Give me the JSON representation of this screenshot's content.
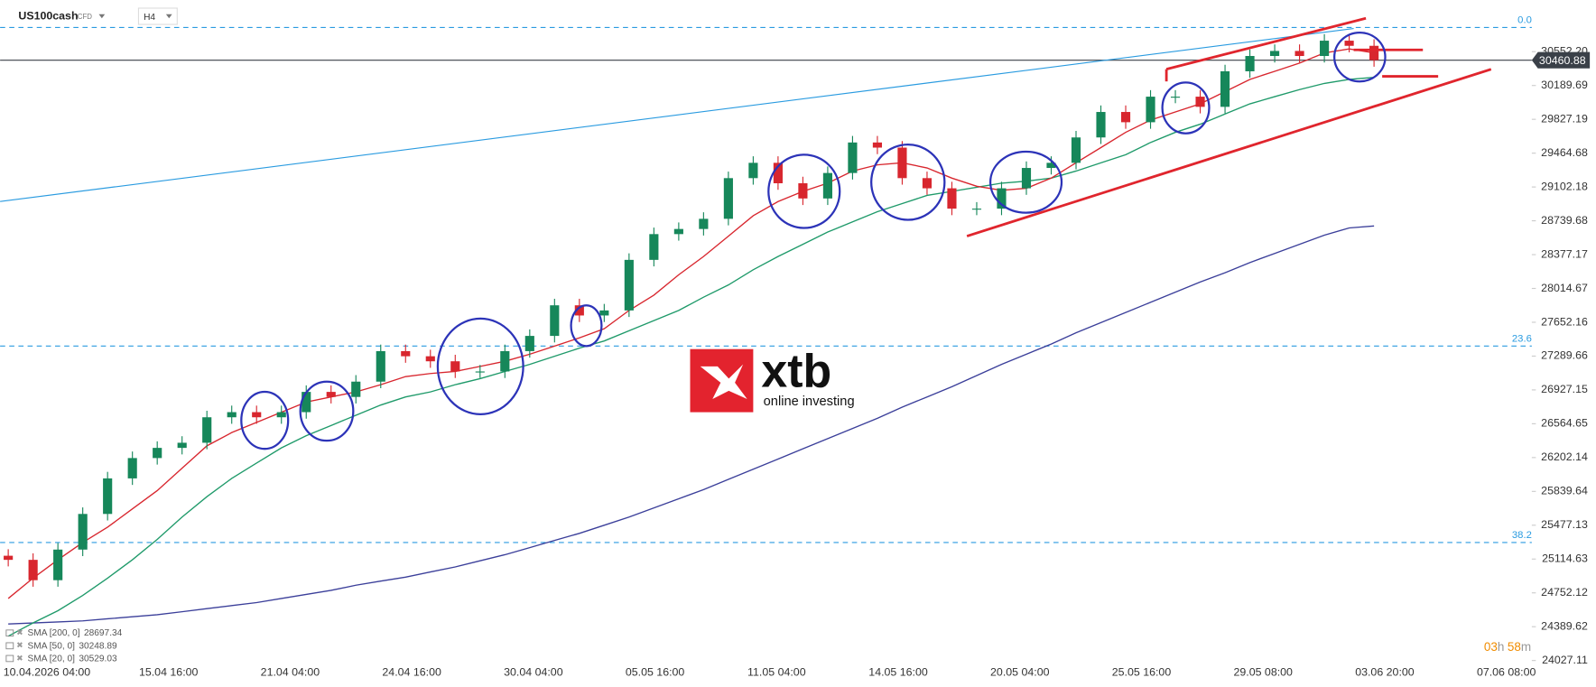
{
  "header": {
    "symbol": "US100cash",
    "symbol_tag": "CFD",
    "timeframe": "H4"
  },
  "countdown": {
    "hours": "03",
    "hours_unit": "h",
    "minutes": "58",
    "minutes_unit": "m"
  },
  "logo": {
    "brand": "xtb",
    "tagline": "online investing"
  },
  "chart_data": {
    "type": "candlestick",
    "ylim": [
      24016,
      31106
    ],
    "yticks": [
      {
        "value": 30552.2,
        "label": "30552.20"
      },
      30189.69,
      29827.19,
      29464.68,
      29102.18,
      28739.68,
      28377.17,
      28014.67,
      27652.16,
      27289.66,
      26927.15,
      26564.65,
      26202.14,
      25839.64,
      25477.13,
      25114.63,
      24752.12,
      24389.62,
      24027.11
    ],
    "x_labels": [
      "10.04.2026 04:00",
      "15.04 16:00",
      "21.04 04:00",
      "24.04 16:00",
      "30.04 04:00",
      "05.05 16:00",
      "11.05 04:00",
      "14.05 16:00",
      "20.05 04:00",
      "25.05 16:00",
      "29.05 08:00",
      "03.06 20:00",
      "07.06 08:00"
    ],
    "up_color": "#16875a",
    "down_color": "#d8262e",
    "open": [
      25150,
      25106,
      24888,
      25216,
      25598,
      25979,
      26197,
      26306,
      26361,
      26634,
      26689,
      26634,
      26689,
      26906,
      26852,
      27016,
      27343,
      27288,
      27234,
      27125,
      27125,
      27343,
      27506,
      27834,
      27725,
      27779,
      28321,
      28597,
      28652,
      28761,
      29197,
      29361,
      29142,
      28979,
      29252,
      29579,
      29524,
      29197,
      29088,
      28870,
      28870,
      29088,
      29306,
      29361,
      29633,
      29906,
      29796,
      30070,
      30070,
      29961,
      30342,
      30506,
      30560,
      30506,
      30670,
      30615
    ],
    "high": [
      25220,
      25176,
      25286,
      25668,
      26049,
      26267,
      26376,
      26431,
      26704,
      26759,
      26759,
      26759,
      26976,
      26976,
      27086,
      27413,
      27413,
      27358,
      27304,
      27195,
      27413,
      27576,
      27904,
      27904,
      27849,
      28391,
      28667,
      28722,
      28831,
      29267,
      29431,
      29431,
      29212,
      29322,
      29649,
      29649,
      29594,
      29267,
      29158,
      28940,
      29158,
      29376,
      29431,
      29703,
      29976,
      29976,
      30140,
      30140,
      30140,
      30412,
      30576,
      30630,
      30630,
      30740,
      30740,
      30685
    ],
    "low": [
      25036,
      24818,
      24818,
      25146,
      25528,
      25909,
      26127,
      26236,
      26291,
      26564,
      26564,
      26564,
      26619,
      26782,
      26782,
      26946,
      27218,
      27164,
      27055,
      27055,
      27055,
      27273,
      27436,
      27655,
      27655,
      27709,
      28251,
      28527,
      28582,
      28691,
      29127,
      29072,
      28909,
      28909,
      29182,
      29454,
      29127,
      29018,
      28800,
      28800,
      28800,
      29018,
      29236,
      29291,
      29563,
      29726,
      29726,
      30000,
      29891,
      29891,
      30272,
      30436,
      30436,
      30436,
      30545,
      30391
    ],
    "close": [
      25106,
      24888,
      25216,
      25598,
      25979,
      26197,
      26306,
      26361,
      26634,
      26689,
      26634,
      26689,
      26906,
      26852,
      27016,
      27343,
      27288,
      27234,
      27125,
      27125,
      27343,
      27506,
      27834,
      27725,
      27779,
      28321,
      28597,
      28652,
      28761,
      29197,
      29361,
      29142,
      28979,
      29252,
      29579,
      29524,
      29197,
      29088,
      28870,
      28870,
      29088,
      29306,
      29361,
      29633,
      29906,
      29796,
      30070,
      30070,
      29961,
      30342,
      30506,
      30560,
      30506,
      30670,
      30615,
      30461
    ],
    "current_price": 30460.88,
    "current_price_color": "#3a4048",
    "sma": [
      {
        "name": "SMA [200, 0]",
        "last": 28697.34,
        "color": "#3b3f9a",
        "values": [
          24419,
          24430,
          24441,
          24452,
          24474,
          24496,
          24518,
          24550,
          24583,
          24616,
          24648,
          24692,
          24736,
          24779,
          24834,
          24878,
          24921,
          24976,
          25030,
          25096,
          25161,
          25237,
          25314,
          25390,
          25477,
          25565,
          25663,
          25761,
          25859,
          25968,
          26077,
          26186,
          26296,
          26405,
          26514,
          26623,
          26743,
          26852,
          26961,
          27081,
          27201,
          27310,
          27419,
          27539,
          27648,
          27757,
          27866,
          27975,
          28084,
          28183,
          28292,
          28390,
          28488,
          28586,
          28663,
          28684
        ]
      },
      {
        "name": "SMA [50, 0]",
        "last": 30248.89,
        "color": "#1f9a6a",
        "values": [
          24288,
          24430,
          24561,
          24725,
          24910,
          25107,
          25325,
          25565,
          25783,
          25979,
          26143,
          26306,
          26437,
          26546,
          26656,
          26765,
          26852,
          26906,
          26983,
          27048,
          27125,
          27201,
          27288,
          27375,
          27452,
          27561,
          27670,
          27779,
          27921,
          28052,
          28215,
          28357,
          28488,
          28619,
          28728,
          28837,
          28924,
          29012,
          29055,
          29099,
          29143,
          29164,
          29197,
          29273,
          29361,
          29448,
          29579,
          29688,
          29775,
          29884,
          29993,
          30070,
          30146,
          30212,
          30255,
          30277
        ]
      },
      {
        "name": "SMA [20, 0]",
        "last": 30529.03,
        "color": "#d8262e",
        "values": [
          24692,
          24910,
          25107,
          25292,
          25456,
          25652,
          25848,
          26088,
          26328,
          26470,
          26579,
          26688,
          26797,
          26852,
          26906,
          26983,
          27070,
          27103,
          27125,
          27179,
          27234,
          27310,
          27397,
          27485,
          27583,
          27779,
          27943,
          28161,
          28357,
          28575,
          28794,
          28946,
          29055,
          29143,
          29273,
          29339,
          29361,
          29306,
          29197,
          29110,
          29066,
          29088,
          29197,
          29361,
          29524,
          29688,
          29819,
          29906,
          29993,
          30124,
          30255,
          30342,
          30430,
          30539,
          30582,
          30539
        ]
      }
    ],
    "fib_levels": [
      {
        "label": "0.0",
        "value": 30811
      },
      {
        "label": "23.6",
        "value": 27397
      },
      {
        "label": "38.2",
        "value": 25292
      }
    ],
    "fib_color": "#2a9be0"
  }
}
